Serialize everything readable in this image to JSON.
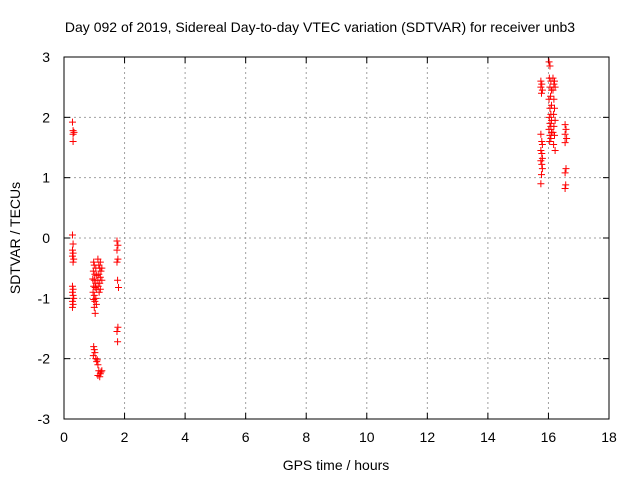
{
  "chart_data": {
    "type": "scatter",
    "title": "Day 092 of 2019, Sidereal Day-to-day VTEC variation (SDTVAR) for receiver unb3",
    "xlabel": "GPS time / hours",
    "ylabel": "SDTVAR / TECUs",
    "xlim": [
      0,
      18
    ],
    "ylim": [
      -3,
      3
    ],
    "xticks": [
      "0",
      "2",
      "4",
      "6",
      "8",
      "10",
      "12",
      "14",
      "16",
      "18"
    ],
    "yticks": [
      "-3",
      "-2",
      "-1",
      "0",
      "1",
      "2",
      "3"
    ],
    "grid": true,
    "marker": "+",
    "color": "#ff0000",
    "series": [
      {
        "name": "SDTVAR",
        "points": [
          [
            0.28,
            1.92
          ],
          [
            0.3,
            1.78
          ],
          [
            0.3,
            1.72
          ],
          [
            0.33,
            1.75
          ],
          [
            0.3,
            1.6
          ],
          [
            0.28,
            0.05
          ],
          [
            0.3,
            -0.1
          ],
          [
            0.28,
            -0.2
          ],
          [
            0.3,
            -0.25
          ],
          [
            0.28,
            -0.3
          ],
          [
            0.32,
            -0.35
          ],
          [
            0.3,
            -0.4
          ],
          [
            0.28,
            -0.8
          ],
          [
            0.3,
            -0.85
          ],
          [
            0.28,
            -0.9
          ],
          [
            0.3,
            -0.95
          ],
          [
            0.32,
            -1.0
          ],
          [
            0.28,
            -1.05
          ],
          [
            0.3,
            -1.1
          ],
          [
            0.28,
            -1.15
          ],
          [
            0.98,
            -0.4
          ],
          [
            1.0,
            -0.45
          ],
          [
            1.05,
            -0.5
          ],
          [
            0.97,
            -0.55
          ],
          [
            1.02,
            -0.6
          ],
          [
            1.08,
            -0.62
          ],
          [
            0.95,
            -0.68
          ],
          [
            1.0,
            -0.7
          ],
          [
            1.05,
            -0.75
          ],
          [
            0.98,
            -0.8
          ],
          [
            1.03,
            -0.82
          ],
          [
            1.08,
            -0.85
          ],
          [
            0.96,
            -0.9
          ],
          [
            1.0,
            -0.95
          ],
          [
            1.05,
            -1.0
          ],
          [
            0.98,
            -1.02
          ],
          [
            1.02,
            -1.05
          ],
          [
            1.07,
            -1.1
          ],
          [
            1.0,
            -1.15
          ],
          [
            1.03,
            -1.25
          ],
          [
            0.98,
            -1.8
          ],
          [
            1.0,
            -1.85
          ],
          [
            1.02,
            -1.9
          ],
          [
            0.97,
            -1.95
          ],
          [
            1.05,
            -2.0
          ],
          [
            1.1,
            -2.02
          ],
          [
            1.08,
            -2.05
          ],
          [
            1.12,
            -2.1
          ],
          [
            1.15,
            -2.2
          ],
          [
            1.2,
            -2.25
          ],
          [
            1.22,
            -2.22
          ],
          [
            1.18,
            -2.3
          ],
          [
            1.12,
            -2.28
          ],
          [
            1.25,
            -2.2
          ],
          [
            1.12,
            -0.35
          ],
          [
            1.15,
            -0.45
          ],
          [
            1.2,
            -0.4
          ],
          [
            1.18,
            -0.5
          ],
          [
            1.22,
            -0.55
          ],
          [
            1.15,
            -0.6
          ],
          [
            1.2,
            -0.65
          ],
          [
            1.12,
            -0.7
          ],
          [
            1.18,
            -0.75
          ],
          [
            1.13,
            -0.8
          ],
          [
            1.2,
            -0.85
          ],
          [
            1.16,
            -0.9
          ],
          [
            1.25,
            -0.5
          ],
          [
            1.25,
            -0.7
          ],
          [
            1.75,
            -0.05
          ],
          [
            1.78,
            -0.12
          ],
          [
            1.75,
            -0.2
          ],
          [
            1.78,
            -0.35
          ],
          [
            1.75,
            -0.4
          ],
          [
            1.77,
            -0.7
          ],
          [
            1.8,
            -0.82
          ],
          [
            1.78,
            -1.48
          ],
          [
            1.75,
            -1.55
          ],
          [
            1.77,
            -1.72
          ],
          [
            15.75,
            2.6
          ],
          [
            15.78,
            2.55
          ],
          [
            15.75,
            2.5
          ],
          [
            15.8,
            2.45
          ],
          [
            15.77,
            2.4
          ],
          [
            15.75,
            1.72
          ],
          [
            15.78,
            1.6
          ],
          [
            15.8,
            1.55
          ],
          [
            15.75,
            1.45
          ],
          [
            15.78,
            1.4
          ],
          [
            15.8,
            1.32
          ],
          [
            15.75,
            1.28
          ],
          [
            15.78,
            1.22
          ],
          [
            15.8,
            1.15
          ],
          [
            15.77,
            1.05
          ],
          [
            15.75,
            0.9
          ],
          [
            16.02,
            2.92
          ],
          [
            16.05,
            2.85
          ],
          [
            16.03,
            2.65
          ],
          [
            16.08,
            2.6
          ],
          [
            16.05,
            2.5
          ],
          [
            16.1,
            2.45
          ],
          [
            16.07,
            2.35
          ],
          [
            16.02,
            2.3
          ],
          [
            16.1,
            2.2
          ],
          [
            16.05,
            2.15
          ],
          [
            16.08,
            2.05
          ],
          [
            16.03,
            2.0
          ],
          [
            16.1,
            1.95
          ],
          [
            16.05,
            1.9
          ],
          [
            16.08,
            1.85
          ],
          [
            16.02,
            1.8
          ],
          [
            16.1,
            1.75
          ],
          [
            16.05,
            1.7
          ],
          [
            16.08,
            1.65
          ],
          [
            16.04,
            1.6
          ],
          [
            16.15,
            2.65
          ],
          [
            16.2,
            2.6
          ],
          [
            16.18,
            2.55
          ],
          [
            16.22,
            2.5
          ],
          [
            16.15,
            2.45
          ],
          [
            16.18,
            2.3
          ],
          [
            16.2,
            2.15
          ],
          [
            16.17,
            2.05
          ],
          [
            16.22,
            1.95
          ],
          [
            16.18,
            1.85
          ],
          [
            16.15,
            1.75
          ],
          [
            16.2,
            1.7
          ],
          [
            16.17,
            1.55
          ],
          [
            16.22,
            1.45
          ],
          [
            16.55,
            1.88
          ],
          [
            16.58,
            1.8
          ],
          [
            16.55,
            1.72
          ],
          [
            16.6,
            1.65
          ],
          [
            16.55,
            1.58
          ],
          [
            16.58,
            1.15
          ],
          [
            16.55,
            1.08
          ],
          [
            16.57,
            0.88
          ],
          [
            16.55,
            0.82
          ]
        ]
      }
    ]
  }
}
